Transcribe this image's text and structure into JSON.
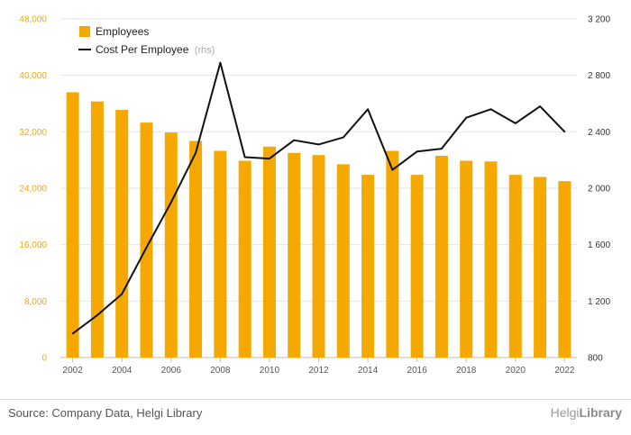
{
  "chart_data": {
    "type": "bar+line",
    "title": "",
    "x": [
      "2002",
      "2003",
      "2004",
      "2005",
      "2006",
      "2007",
      "2008",
      "2009",
      "2010",
      "2011",
      "2012",
      "2013",
      "2014",
      "2015",
      "2016",
      "2017",
      "2018",
      "2019",
      "2020",
      "2021",
      "2022"
    ],
    "x_tick_labels": [
      "2002",
      "2004",
      "2006",
      "2008",
      "2010",
      "2012",
      "2014",
      "2016",
      "2018",
      "2020",
      "2022"
    ],
    "series": [
      {
        "name": "Employees",
        "type": "bar",
        "axis": "left",
        "color": "#f5a800",
        "values": [
          37600,
          36300,
          35100,
          33300,
          31900,
          30700,
          29300,
          27900,
          29900,
          29000,
          28700,
          27400,
          25900,
          29300,
          25900,
          28600,
          27900,
          27800,
          25900,
          25600,
          25000
        ]
      },
      {
        "name": "Cost Per Employee",
        "name_suffix": "(rhs)",
        "type": "line",
        "axis": "right",
        "color": "#111111",
        "values": [
          970,
          1100,
          1250,
          1580,
          1900,
          2250,
          2890,
          2220,
          2210,
          2340,
          2310,
          2360,
          2560,
          2130,
          2260,
          2280,
          2500,
          2560,
          2460,
          2580,
          2400
        ]
      }
    ],
    "y_left": {
      "lim": [
        0,
        48000
      ],
      "ticks": [
        "0",
        "8,000",
        "16,000",
        "24,000",
        "32,000",
        "40,000",
        "48,000"
      ],
      "tick_values": [
        0,
        8000,
        16000,
        24000,
        32000,
        40000,
        48000
      ]
    },
    "y_right": {
      "lim": [
        800,
        3200
      ],
      "ticks": [
        "800",
        "1 200",
        "1 600",
        "2 000",
        "2 400",
        "2 800",
        "3 200"
      ],
      "tick_values": [
        800,
        1200,
        1600,
        2000,
        2400,
        2800,
        3200
      ]
    },
    "grid": true,
    "legend": "top-left"
  },
  "footer": {
    "source": "Source: Company Data, Helgi Library",
    "brand_prefix": "Helgi",
    "brand_suffix": "Library"
  }
}
